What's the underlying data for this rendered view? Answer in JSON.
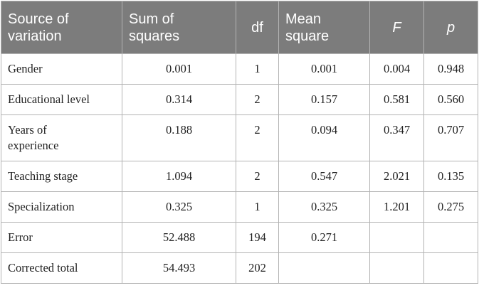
{
  "table": {
    "headers": [
      {
        "line1": "Source of",
        "line2": "variation",
        "italic": false
      },
      {
        "line1": "Sum of",
        "line2": "squares",
        "italic": false
      },
      {
        "line1": "df",
        "line2": "",
        "italic": false
      },
      {
        "line1": "Mean",
        "line2": "square",
        "italic": false
      },
      {
        "line1": "F",
        "line2": "",
        "italic": true
      },
      {
        "line1": "p",
        "line2": "",
        "italic": true
      }
    ],
    "rows": [
      {
        "source_line1": "Gender",
        "source_line2": "",
        "ss": "0.001",
        "df": "1",
        "ms": "0.001",
        "f": "0.004",
        "p": "0.948"
      },
      {
        "source_line1": "Educational level",
        "source_line2": "",
        "ss": "0.314",
        "df": "2",
        "ms": "0.157",
        "f": "0.581",
        "p": "0.560"
      },
      {
        "source_line1": "Years of",
        "source_line2": "experience",
        "ss": "0.188",
        "df": "2",
        "ms": "0.094",
        "f": "0.347",
        "p": "0.707"
      },
      {
        "source_line1": "Teaching stage",
        "source_line2": "",
        "ss": "1.094",
        "df": "2",
        "ms": "0.547",
        "f": "2.021",
        "p": "0.135"
      },
      {
        "source_line1": "Specialization",
        "source_line2": "",
        "ss": "0.325",
        "df": "1",
        "ms": "0.325",
        "f": "1.201",
        "p": "0.275"
      },
      {
        "source_line1": "Error",
        "source_line2": "",
        "ss": "52.488",
        "df": "194",
        "ms": "0.271",
        "f": "",
        "p": ""
      },
      {
        "source_line1": "Corrected total",
        "source_line2": "",
        "ss": "54.493",
        "df": "202",
        "ms": "",
        "f": "",
        "p": ""
      }
    ]
  }
}
